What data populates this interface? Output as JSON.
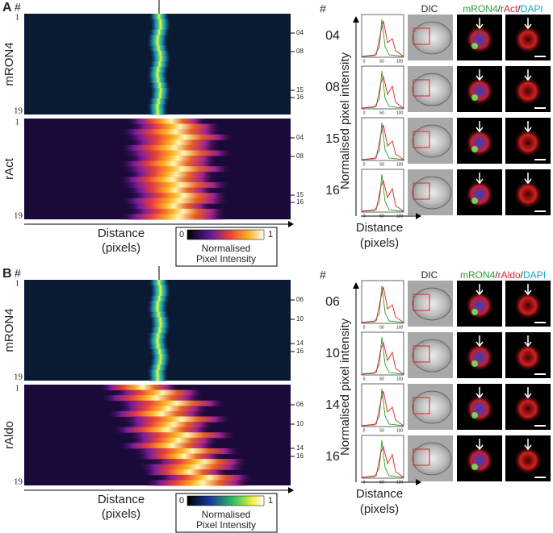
{
  "panels": [
    {
      "label": "A",
      "hash": "#",
      "heatmaps": [
        {
          "label": "mRON4",
          "first": "1",
          "last": "19",
          "markers": [
            "04",
            "08",
            "15",
            "16"
          ]
        },
        {
          "label": "rAct",
          "first": "1",
          "last": "19",
          "markers": [
            "04",
            "08",
            "15",
            "16"
          ]
        }
      ],
      "x_label": [
        "Distance",
        "(pixels)"
      ],
      "colorbar": {
        "min": "0",
        "max": "1",
        "label": [
          "Normalised",
          "Pixel Intensity"
        ]
      },
      "cells": {
        "hash": "#",
        "dic": "DIC",
        "merge": [
          "mRON4",
          "/",
          "rAct",
          "/",
          "DAPI"
        ],
        "y_label": "Normalised pixel intensity",
        "rows": [
          "04",
          "08",
          "15",
          "16"
        ],
        "ticks": [
          "0",
          "50",
          "100"
        ],
        "x_label": [
          "Distance",
          "(pixels)"
        ]
      }
    },
    {
      "label": "B",
      "hash": "#",
      "heatmaps": [
        {
          "label": "mRON4",
          "first": "1",
          "last": "19",
          "markers": [
            "06",
            "10",
            "14",
            "16"
          ]
        },
        {
          "label": "rAldo",
          "first": "1",
          "last": "19",
          "markers": [
            "06",
            "10",
            "14",
            "16"
          ]
        }
      ],
      "x_label": [
        "Distance",
        "(pixels)"
      ],
      "colorbar": {
        "min": "0",
        "max": "1",
        "label": [
          "Normalised",
          "Pixel Intensity"
        ]
      },
      "cells": {
        "hash": "#",
        "dic": "DIC",
        "merge": [
          "mRON4",
          "/",
          "rAldo",
          "/",
          "DAPI"
        ],
        "y_label": "Normalised pixel intensity",
        "rows": [
          "06",
          "10",
          "14",
          "16"
        ],
        "ticks": [
          "0",
          "50",
          "100"
        ],
        "x_label": [
          "Distance",
          "(pixels)"
        ]
      }
    }
  ]
}
